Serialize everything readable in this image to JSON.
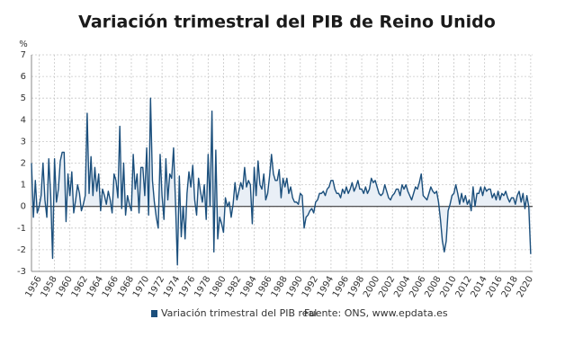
{
  "chart_data": {
    "type": "line",
    "title": "Variación trimestral del PIB de Reino Unido",
    "y_unit": "%",
    "source": "Fuente: ONS, www.epdata.es",
    "x": [
      1955,
      1955.25,
      1955.5,
      1955.75,
      1956,
      1956.25,
      1956.5,
      1956.75,
      1957,
      1957.25,
      1957.5,
      1957.75,
      1958,
      1958.25,
      1958.5,
      1958.75,
      1959,
      1959.25,
      1959.5,
      1959.75,
      1960,
      1960.25,
      1960.5,
      1960.75,
      1961,
      1961.25,
      1961.5,
      1961.75,
      1962,
      1962.25,
      1962.5,
      1962.75,
      1963,
      1963.25,
      1963.5,
      1963.75,
      1964,
      1964.25,
      1964.5,
      1964.75,
      1965,
      1965.25,
      1965.5,
      1965.75,
      1966,
      1966.25,
      1966.5,
      1966.75,
      1967,
      1967.25,
      1967.5,
      1967.75,
      1968,
      1968.25,
      1968.5,
      1968.75,
      1969,
      1969.25,
      1969.5,
      1969.75,
      1970,
      1970.25,
      1970.5,
      1970.75,
      1971,
      1971.25,
      1971.5,
      1971.75,
      1972,
      1972.25,
      1972.5,
      1972.75,
      1973,
      1973.25,
      1973.5,
      1973.75,
      1974,
      1974.25,
      1974.5,
      1974.75,
      1975,
      1975.25,
      1975.5,
      1975.75,
      1976,
      1976.25,
      1976.5,
      1976.75,
      1977,
      1977.25,
      1977.5,
      1977.75,
      1978,
      1978.25,
      1978.5,
      1978.75,
      1979,
      1979.25,
      1979.5,
      1979.75,
      1980,
      1980.25,
      1980.5,
      1980.75,
      1981,
      1981.25,
      1981.5,
      1981.75,
      1982,
      1982.25,
      1982.5,
      1982.75,
      1983,
      1983.25,
      1983.5,
      1983.75,
      1984,
      1984.25,
      1984.5,
      1984.75,
      1985,
      1985.25,
      1985.5,
      1985.75,
      1986,
      1986.25,
      1986.5,
      1986.75,
      1987,
      1987.25,
      1987.5,
      1987.75,
      1988,
      1988.25,
      1988.5,
      1988.75,
      1989,
      1989.25,
      1989.5,
      1989.75,
      1990,
      1990.25,
      1990.5,
      1990.75,
      1991,
      1991.25,
      1991.5,
      1991.75,
      1992,
      1992.25,
      1992.5,
      1992.75,
      1993,
      1993.25,
      1993.5,
      1993.75,
      1994,
      1994.25,
      1994.5,
      1994.75,
      1995,
      1995.25,
      1995.5,
      1995.75,
      1996,
      1996.25,
      1996.5,
      1996.75,
      1997,
      1997.25,
      1997.5,
      1997.75,
      1998,
      1998.25,
      1998.5,
      1998.75,
      1999,
      1999.25,
      1999.5,
      1999.75,
      2000,
      2000.25,
      2000.5,
      2000.75,
      2001,
      2001.25,
      2001.5,
      2001.75,
      2002,
      2002.25,
      2002.5,
      2002.75,
      2003,
      2003.25,
      2003.5,
      2003.75,
      2004,
      2004.25,
      2004.5,
      2004.75,
      2005,
      2005.25,
      2005.5,
      2005.75,
      2006,
      2006.25,
      2006.5,
      2006.75,
      2007,
      2007.25,
      2007.5,
      2007.75,
      2008,
      2008.25,
      2008.5,
      2008.75,
      2009,
      2009.25,
      2009.5,
      2009.75,
      2010,
      2010.25,
      2010.5,
      2010.75,
      2011,
      2011.25,
      2011.5,
      2011.75,
      2012,
      2012.25,
      2012.5,
      2012.75,
      2013,
      2013.25,
      2013.5,
      2013.75,
      2014,
      2014.25,
      2014.5,
      2014.75,
      2015,
      2015.25,
      2015.5,
      2015.75,
      2016,
      2016.25,
      2016.5,
      2016.75,
      2017,
      2017.25,
      2017.5,
      2017.75,
      2018,
      2018.25,
      2018.5,
      2018.75,
      2019,
      2019.25,
      2019.5,
      2019.75,
      2020
    ],
    "series": [
      {
        "name": "Variación trimestral del PIB real",
        "color": "#1b4f7c",
        "values": [
          2,
          -0.5,
          1.2,
          -0.3,
          0,
          0.5,
          2,
          0.3,
          -0.5,
          2.2,
          0.5,
          -2.4,
          2.2,
          0.2,
          0.8,
          2.1,
          2.5,
          2.5,
          -0.7,
          1.5,
          0.5,
          1.6,
          -0.3,
          0.3,
          1,
          0.6,
          -0.2,
          0.1,
          0.5,
          4.3,
          0.6,
          2.3,
          0.5,
          1.8,
          0.7,
          1.5,
          -0.2,
          0.8,
          0.5,
          0.1,
          0.7,
          0.3,
          -0.3,
          1.5,
          1.2,
          0.4,
          3.7,
          -0.1,
          2,
          -0.4,
          0.5,
          0.1,
          -0.2,
          2.4,
          0.8,
          1.5,
          -0.3,
          1.8,
          1.8,
          0.5,
          2.7,
          -0.4,
          5,
          1.2,
          0.2,
          -0.5,
          -1,
          2.4,
          0.5,
          -0.6,
          2.2,
          0.3,
          1.5,
          1.3,
          2.7,
          0.2,
          -2.7,
          1.4,
          -1.4,
          0,
          -1.5,
          0.6,
          1.6,
          0.9,
          1.9,
          0.3,
          -0.4,
          1.3,
          0.7,
          0.2,
          1,
          -0.6,
          2.4,
          0,
          4.4,
          -2.1,
          2.6,
          -1.5,
          -0.5,
          -0.8,
          -1.2,
          0.4,
          0,
          0.2,
          -0.5,
          0.1,
          1.1,
          0.3,
          0.7,
          1.1,
          0.8,
          1.8,
          0.9,
          1.2,
          1,
          -0.8,
          1.8,
          0.5,
          2.1,
          1,
          0.8,
          1.5,
          0.3,
          0.6,
          1.4,
          2.4,
          1.5,
          1.2,
          1.2,
          1.7,
          0.4,
          1.3,
          0.9,
          1.3,
          0.6,
          0.9,
          0.4,
          0.2,
          0.2,
          0.1,
          0.6,
          0.5,
          -1,
          -0.5,
          -0.4,
          -0.2,
          -0.1,
          -0.3,
          0.2,
          0.3,
          0.6,
          0.6,
          0.7,
          0.5,
          0.8,
          0.9,
          1.2,
          1.2,
          0.8,
          0.6,
          0.6,
          0.4,
          0.8,
          0.6,
          0.9,
          0.6,
          0.8,
          1.1,
          0.7,
          0.9,
          1.2,
          0.8,
          0.8,
          0.6,
          0.9,
          0.6,
          0.8,
          1.3,
          1.1,
          1.2,
          0.9,
          0.6,
          0.5,
          0.6,
          1,
          0.7,
          0.4,
          0.3,
          0.5,
          0.6,
          0.8,
          0.8,
          0.5,
          1,
          0.8,
          1,
          0.7,
          0.5,
          0.3,
          0.6,
          0.9,
          0.8,
          1.1,
          1.5,
          0.5,
          0.4,
          0.3,
          0.6,
          0.9,
          0.7,
          0.6,
          0.7,
          0.2,
          -0.6,
          -1.6,
          -2.1,
          -1.6,
          -0.2,
          0.1,
          0.5,
          0.6,
          1,
          0.6,
          0.1,
          0.6,
          0.2,
          0.5,
          0.1,
          0.3,
          -0.2,
          0.9,
          0,
          0.6,
          0.6,
          0.9,
          0.5,
          0.9,
          0.7,
          0.8,
          0.8,
          0.4,
          0.6,
          0.3,
          0.7,
          0.3,
          0.6,
          0.5,
          0.7,
          0.4,
          0.2,
          0.4,
          0.4,
          0.1,
          0.5,
          0.7,
          0.2,
          0.6,
          -0.1,
          0.5,
          0,
          -2.2
        ]
      }
    ],
    "xlim": [
      1955,
      2020.25
    ],
    "ylim": [
      -3,
      7
    ],
    "xticks": [
      1956,
      1958,
      1960,
      1962,
      1964,
      1966,
      1968,
      1970,
      1972,
      1974,
      1976,
      1978,
      1980,
      1982,
      1984,
      1986,
      1988,
      1990,
      1992,
      1994,
      1996,
      1998,
      2000,
      2002,
      2004,
      2006,
      2008,
      2010,
      2012,
      2014,
      2016,
      2018,
      2020
    ],
    "yticks": [
      -3,
      -2,
      -1,
      0,
      1,
      2,
      3,
      4,
      5,
      6,
      7
    ],
    "grid": true,
    "area_color": "#e9eff6"
  }
}
